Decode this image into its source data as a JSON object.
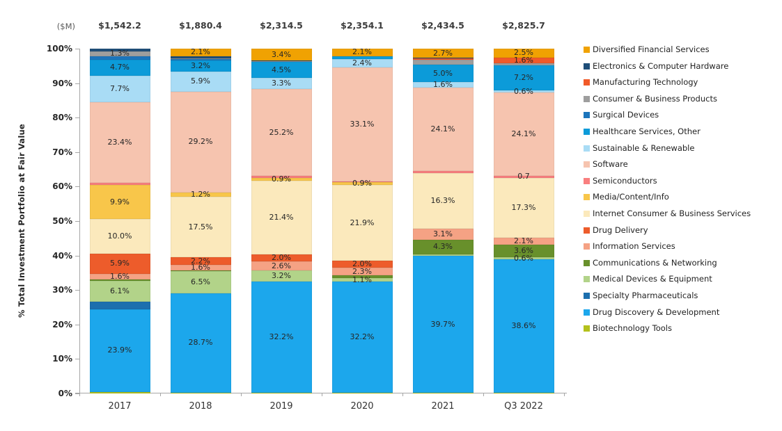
{
  "y_axis": {
    "title": "% Total Investment Portfolio at Fair Value",
    "ticks": [
      "100%",
      "90%",
      "80%",
      "70%",
      "60%",
      "50%",
      "40%",
      "30%",
      "20%",
      "10%",
      "0%"
    ]
  },
  "totals_unit": "($M)",
  "chart_data": {
    "type": "bar",
    "stacked": true,
    "title": "",
    "xlabel": "",
    "ylabel": "% Total Investment Portfolio at Fair Value",
    "ylim": [
      0,
      100
    ],
    "grid": false,
    "legend_position": "right",
    "categories": [
      "2017",
      "2018",
      "2019",
      "2020",
      "2021",
      "Q3 2022"
    ],
    "totals": [
      "$1,542.2",
      "$1,880.4",
      "$2,314.5",
      "$2,354.1",
      "$2,434.5",
      "$2,825.7"
    ],
    "stack_order_note": "series listed top-of-stack to bottom-of-stack, matching legend order",
    "series": [
      {
        "name": "Diversified Financial Services",
        "color": "#F0A202",
        "values": [
          0,
          2.1,
          3.4,
          2.1,
          2.7,
          2.5
        ],
        "labels": [
          "",
          "2.1%",
          "3.4%",
          "2.1%",
          "2.7%",
          "2.5%"
        ]
      },
      {
        "name": "Electronics & Computer Hardware",
        "color": "#1F4E79",
        "values": [
          0.8,
          0.7,
          0.3,
          0,
          0.2,
          0.2
        ],
        "labels": [
          "",
          "",
          "",
          "",
          "",
          ""
        ]
      },
      {
        "name": "Manufacturing Technology",
        "color": "#F15A29",
        "values": [
          0,
          0,
          0,
          0,
          0.3,
          1.6
        ],
        "labels": [
          "",
          "",
          "",
          "",
          "",
          "1.6%"
        ]
      },
      {
        "name": "Consumer & Business Products",
        "color": "#9E9E9E",
        "values": [
          1.3,
          0.3,
          0.2,
          0,
          1.5,
          0.6
        ],
        "labels": [
          "1.3%",
          "",
          "",
          "",
          "",
          ""
        ]
      },
      {
        "name": "Surgical Devices",
        "color": "#1C75BC",
        "values": [
          1.0,
          0.3,
          0,
          0,
          0,
          0
        ],
        "labels": [
          "",
          "",
          "",
          "",
          "",
          ""
        ]
      },
      {
        "name": "Healthcare Services, Other",
        "color": "#0C9BD9",
        "values": [
          4.7,
          3.2,
          4.5,
          0.9,
          5.0,
          7.2
        ],
        "labels": [
          "4.7%",
          "3.2%",
          "4.5%",
          "",
          "5.0%",
          "7.2%"
        ]
      },
      {
        "name": "Sustainable & Renewable",
        "color": "#A9DCF5",
        "values": [
          7.7,
          5.9,
          3.3,
          2.4,
          1.6,
          0.6
        ],
        "labels": [
          "7.7%",
          "5.9%",
          "3.3%",
          "2.4%",
          "1.6%",
          "0.6%"
        ]
      },
      {
        "name": "Software",
        "color": "#F6C4AF",
        "values": [
          23.4,
          29.2,
          25.2,
          33.1,
          24.1,
          24.1
        ],
        "labels": [
          "23.4%",
          "29.2%",
          "25.2%",
          "33.1%",
          "24.1%",
          "24.1%"
        ]
      },
      {
        "name": "Semiconductors",
        "color": "#F97F7F",
        "values": [
          0.6,
          0.1,
          0.5,
          0.2,
          0.6,
          0.7
        ],
        "labels": [
          "",
          "",
          "",
          "",
          "",
          "0.7"
        ]
      },
      {
        "name": "Media/Content/Info",
        "color": "#F8C64A",
        "values": [
          9.9,
          1.2,
          0.9,
          0.9,
          0,
          0
        ],
        "labels": [
          "9.9%",
          "1.2%",
          "0.9%",
          "0.9%",
          "",
          ""
        ]
      },
      {
        "name": "Internet Consumer & Business Services",
        "color": "#FBE9BC",
        "values": [
          10.0,
          17.5,
          21.4,
          21.9,
          16.3,
          17.3
        ],
        "labels": [
          "10.0%",
          "17.5%",
          "21.4%",
          "21.9%",
          "16.3%",
          "17.3%"
        ]
      },
      {
        "name": "Drug Delivery",
        "color": "#ED5C2B",
        "values": [
          5.9,
          2.2,
          2.0,
          2.0,
          0,
          0
        ],
        "labels": [
          "5.9%",
          "2.2%",
          "2.0%",
          "2.0%",
          "",
          ""
        ]
      },
      {
        "name": "Information Services",
        "color": "#F5A284",
        "values": [
          1.6,
          1.6,
          2.6,
          2.3,
          3.1,
          2.1
        ],
        "labels": [
          "1.6%",
          "1.6%",
          "2.6%",
          "2.3%",
          "3.1%",
          "2.1%"
        ]
      },
      {
        "name": "Communications & Networking",
        "color": "#68902B",
        "values": [
          0.4,
          0.2,
          0.1,
          0.7,
          4.3,
          3.6
        ],
        "labels": [
          "",
          "",
          "",
          "",
          "4.3%",
          "3.6%"
        ]
      },
      {
        "name": "Medical Devices & Equipment",
        "color": "#B2D389",
        "values": [
          6.1,
          6.5,
          3.2,
          1.1,
          0.4,
          0.6
        ],
        "labels": [
          "6.1%",
          "6.5%",
          "3.2%",
          "1.1%",
          "",
          "0.6%"
        ]
      },
      {
        "name": "Specialty Pharmaceuticals",
        "color": "#1C6FAE",
        "values": [
          2.2,
          0,
          0,
          0,
          0,
          0
        ],
        "labels": [
          "",
          "",
          "",
          "",
          "",
          ""
        ]
      },
      {
        "name": "Drug Discovery & Development",
        "color": "#1CA7EC",
        "values": [
          23.9,
          28.7,
          32.2,
          32.2,
          39.7,
          38.6
        ],
        "labels": [
          "23.9%",
          "28.7%",
          "32.2%",
          "32.2%",
          "39.7%",
          "38.6%"
        ]
      },
      {
        "name": "Biotechnology Tools",
        "color": "#B4C11C",
        "values": [
          0.5,
          0.3,
          0.2,
          0.2,
          0.2,
          0.3
        ],
        "labels": [
          "",
          "",
          "",
          "",
          "",
          ""
        ]
      }
    ]
  }
}
